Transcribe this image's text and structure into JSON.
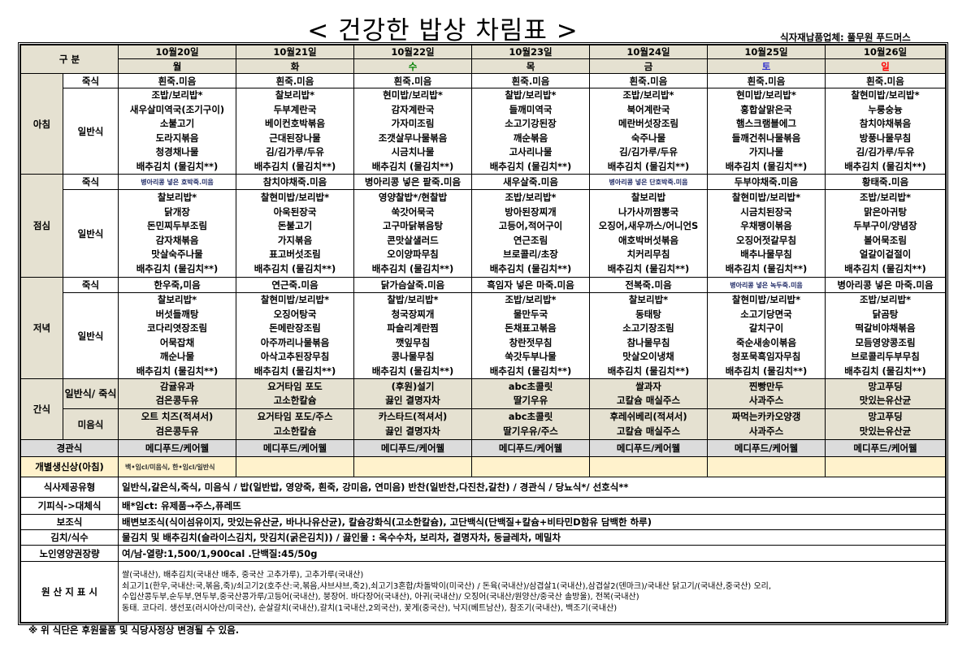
{
  "title": "< 건강한 밥상 차림표 >",
  "supplier": "식자재납품업체: 풀무원 푸드머스",
  "header_label": "구 분",
  "days": [
    {
      "date": "10월20일",
      "weekday": "월",
      "color": "#000000"
    },
    {
      "date": "10월21일",
      "weekday": "화",
      "color": "#000000"
    },
    {
      "date": "10월22일",
      "weekday": "수",
      "color": "#008000"
    },
    {
      "date": "10월23일",
      "weekday": "목",
      "color": "#000000"
    },
    {
      "date": "10월24일",
      "weekday": "금",
      "color": "#000000"
    },
    {
      "date": "10월25일",
      "weekday": "토",
      "color": "#3333cc"
    },
    {
      "date": "10월26일",
      "weekday": "일",
      "color": "#ff0000"
    }
  ],
  "meals": [
    {
      "label": "아침",
      "porridge_label": "죽식",
      "regular_label": "일반식",
      "porridge": [
        "흰죽.미음",
        "흰죽.미음",
        "흰죽.미음",
        "흰죽.미음",
        "흰죽.미음",
        "흰죽.미음",
        "흰죽.미음"
      ],
      "regular": [
        [
          "조밥/보리밥*",
          "새우살미역국(조기구이)",
          "소불고기",
          "도라지볶음",
          "청경채나물",
          "배추김치 (물김치**)"
        ],
        [
          "찰보리밥*",
          "두부계란국",
          "베이컨호박볶음",
          "근대된장나물",
          "김/김가루/두유",
          "배추김치 (물김치**)"
        ],
        [
          "현미밥/보리밥*",
          "감자계란국",
          "가자미조림",
          "조갯살무나물볶음",
          "시금치나물",
          "배추김치 (물김치**)"
        ],
        [
          "찰밥/보리밥*",
          "들깨미역국",
          "소고기강된장",
          "깨순볶음",
          "고사리나물",
          "배추김치 (물김치**)"
        ],
        [
          "조밥/보리밥*",
          "북어계란국",
          "메란버섯장조림",
          "숙주나물",
          "김/김가루/두유",
          "배추김치 (물김치**)"
        ],
        [
          "현미밥/보리밥*",
          "홍합살맑은국",
          "햄스크램블에그",
          "들깨건취나물볶음",
          "가지나물",
          "배추김치 (물김치**)"
        ],
        [
          "찰현미밥/보리밥*",
          "누룽숭늉",
          "참치야채볶음",
          "방풍나물무침",
          "김/김가루/두유",
          "배추김치 (물김치**)"
        ]
      ]
    },
    {
      "label": "점심",
      "porridge_label": "죽식",
      "regular_label": "일반식",
      "porridge": [
        "병아리콩 넣은 호박죽.미음",
        "참치야채죽.미음",
        "병아리콩 넣은 팥죽.미음",
        "새우살죽.미음",
        "병아리콩 넣은 단호박죽.미음",
        "두부야채죽.미음",
        "황태죽.미음"
      ],
      "porridge_small": [
        true,
        false,
        false,
        false,
        true,
        false,
        false
      ],
      "regular": [
        [
          "찰보리밥*",
          "닭개장",
          "돈민찌두부조림",
          "감자채볶음",
          "맛살숙주나물",
          "배추김치 (물김치**)"
        ],
        [
          "찰현미밥/보리밥*",
          "아욱된장국",
          "돈불고기",
          "가지볶음",
          "표고버섯조림",
          "배추김치 (물김치**)"
        ],
        [
          "영양찰밥*/현찰밥",
          "쑥갓어묵국",
          "고구마닭볶음탕",
          "콘맛살샐러드",
          "오이양파무침",
          "배추김치 (물김치**)"
        ],
        [
          "조밥/보리밥*",
          "방아된장찌개",
          "고등어,적어구이",
          "연근조림",
          "브로콜리/초장",
          "배추김치 (물김치**)"
        ],
        [
          "찰보리밥",
          "나가사끼짬뽕국",
          "오징어,새우까스/어니언S",
          "애호박버섯볶음",
          "치커리무침",
          "배추김치 (물김치**)"
        ],
        [
          "찰현미밥/보리밥*",
          "시금치된장국",
          "우채팽이볶음",
          "오징어젓갈무침",
          "배추나물무침",
          "배추김치 (물김치**)"
        ],
        [
          "조밥/보리밥*",
          "맑은아귀탕",
          "두부구이/양념장",
          "볼어묵조림",
          "얼갈이겉절이",
          "배추김치 (물김치**)"
        ]
      ]
    },
    {
      "label": "저녁",
      "porridge_label": "죽식",
      "regular_label": "일반식",
      "porridge": [
        "한우죽,미음",
        "연근죽.미음",
        "닭가슴살죽.미음",
        "흑임자 넣은 마죽.미음",
        "전복죽.미음",
        "병아리콩 넣은 녹두죽.미음",
        "병아리콩 넣은 마죽.미음"
      ],
      "porridge_small": [
        false,
        false,
        false,
        false,
        false,
        true,
        false
      ],
      "regular": [
        [
          "찰보리밥*",
          "버섯들깨탕",
          "코다리엿장조림",
          "어묵잡채",
          "깨순나물",
          "배추김치 (물김치**)"
        ],
        [
          "찰현미밥/보리밥*",
          "오징어탕국",
          "돈메란장조림",
          "아주까리나물볶음",
          "아삭고추된장무침",
          "배추김치 (물김치**)"
        ],
        [
          "찰밥/보리밥*",
          "청국장찌개",
          "파슬리계란찜",
          "깻잎무침",
          "콩나물무침",
          "배추김치 (물김치**)"
        ],
        [
          "조밥/보리밥*",
          "물만두국",
          "돈채표고볶음",
          "창란젓무침",
          "쑥갓두부나물",
          "배추김치 (물김치**)"
        ],
        [
          "찰보리밥*",
          "동태탕",
          "소고기장조림",
          "참나물무침",
          "맛살오이냉채",
          "배추김치 (물김치**)"
        ],
        [
          "찰현미밥/보리밥*",
          "소고기당면국",
          "갈치구이",
          "죽순새송이볶음",
          "청포묵흑임자무침",
          "배추김치 (물김치**)"
        ],
        [
          "조밥/보리밥*",
          "닭곰탕",
          "떡갈비야채볶음",
          "모듬영양콩조림",
          "브로콜리두부무침",
          "배추김치 (물김치**)"
        ]
      ]
    }
  ],
  "snack": {
    "label": "간식",
    "regular_label": "일반식/ 죽식",
    "puree_label": "미음식",
    "regular": [
      [
        "감귤유과",
        "검은콩두유"
      ],
      [
        "요거타임 포도",
        "고소한칼슘"
      ],
      [
        "(후원)설기",
        "끓인 결명자차"
      ],
      [
        "abc초콜릿",
        "딸기우유"
      ],
      [
        "쌀과자",
        "고칼슘 매실주스"
      ],
      [
        "찐빵만두",
        "사과주스"
      ],
      [
        "망고푸딩",
        "맛있는유산균"
      ]
    ],
    "puree": [
      [
        "오트 치즈(적셔서)",
        "검은콩두유"
      ],
      [
        "요거타임 포도/주스",
        "고소한칼슘"
      ],
      [
        "카스타드(적셔서)",
        "끓인 결명자차"
      ],
      [
        "abc초콜릿",
        "딸기우유/주스"
      ],
      [
        "후레쉬베리(적셔서)",
        "고칼슘 매실주스"
      ],
      [
        "짜먹는카카오양갱",
        "사과주스"
      ],
      [
        "망고푸딩",
        "맛있는유산균"
      ]
    ]
  },
  "tube": {
    "label": "경관식",
    "values": [
      "메디푸드/케어웰",
      "메디푸드/케어웰",
      "메디푸드/케어웰",
      "메디푸드/케어웰",
      "메디푸드/케어웰",
      "메디푸드/케어웰",
      "메디푸드/케어웰"
    ]
  },
  "birthday": {
    "label": "개별생신상(아침)",
    "values": [
      "백•임cl/미음식, 한•임cl/일반식",
      "",
      "",
      "",
      "",
      "",
      ""
    ]
  },
  "info": [
    {
      "label": "식사제공유형",
      "text": "일반식,갈은식,죽식, 미음식 / 밥(일반밥, 영양죽, 흰죽, 강미음, 연미음) 반찬(일반찬,다진찬,갈찬) / 경관식 / 당뇨식*/ 선호식**"
    },
    {
      "label": "기피식->대체식",
      "text": "배*임ct: 유제품→주스,퓨레뜨"
    },
    {
      "label": "보조식",
      "text": "배변보조식(식이섬유이지, 맛있는유산균, 바나나유산균), 칼슘강화식(고소한칼슘), 고단백식(단백질+칼슘+비타민D함유 담백한 하루)"
    },
    {
      "label": "김치/식수",
      "text": "물김치 및 배추김치(슬라이스김치, 맛김치(굵은김치)) / 끓인물 : 옥수수차, 보리차, 결명자차, 둥글레차, 메밀차"
    },
    {
      "label": "노인영양권장량",
      "text": "여/남-열량:1,500/1,900cal .단백질:45/50g"
    }
  ],
  "origin": {
    "label": "원 산 지 표 시",
    "lines": [
      "쌀(국내산),  배추김치(국내산 배추, 중국산 고추가루), 고추가루(국내산)",
      "쇠고기1(한우,국내산:국,볶음,죽)/쇠고기2(호주산:국,볶음,샤브샤브,죽2),쇠고기3혼합/차돌박이(미국산) / 돈육(국내산)/삼겹살1(국내산),삼겹살2(덴마크)/국내산 닭고기/(국내산,중국산) 오리,",
      "수입산콩두부,순두부,연두부,중국산콩가루/고등어(국내산), 붕장어. 바다장어(국내산), 아귀(국내산)/  오징어(국내산/원양산/중국산 솔방울), 전복(국내산)",
      "동태. 코다리. 생선포(러시아산/미국산), 순살갈치(국내산),갈치(1국내산,2외국산), 꽃게(중국산), 낙지(베트남산), 참조기(국내산), 백조기(국내산)"
    ]
  },
  "footnote": "※ 위 식단은 후원물품 및 식당사정상 변경될 수 있음."
}
